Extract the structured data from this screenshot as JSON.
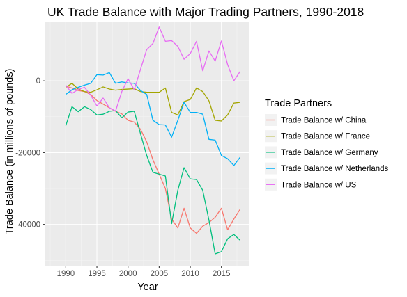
{
  "chart_data": {
    "type": "line",
    "title": "UK Trade Balance with Major Trading Partners, 1990-2018",
    "xlabel": "Year",
    "ylabel": "Trade Balance (in millions of pounds)",
    "xlim": [
      1986.6,
      2019.4
    ],
    "ylim": [
      -51500,
      16500
    ],
    "x_ticks": [
      1990,
      1995,
      2000,
      2005,
      2010,
      2015
    ],
    "y_ticks": [
      -40000,
      -20000,
      0
    ],
    "y_tick_labels": [
      "-40000",
      "-20000",
      "0"
    ],
    "grid": true,
    "legend": {
      "title": "Trade Partners",
      "placement": "right"
    },
    "x": [
      1990,
      1991,
      1992,
      1993,
      1994,
      1995,
      1996,
      1997,
      1998,
      1999,
      2000,
      2001,
      2002,
      2003,
      2004,
      2005,
      2006,
      2007,
      2008,
      2009,
      2010,
      2011,
      2012,
      2013,
      2014,
      2015,
      2016,
      2017,
      2018
    ],
    "series": [
      {
        "name": "Trade Balance w/ China",
        "color": "#F8766D",
        "values": [
          -1500,
          -2000,
          -2700,
          -3000,
          -3800,
          -5500,
          -6500,
          -7500,
          -8500,
          -9200,
          -11000,
          -11500,
          -13500,
          -17000,
          -22000,
          -26000,
          -30000,
          -38500,
          -41000,
          -35500,
          -41000,
          -42500,
          -40500,
          -39500,
          -38000,
          -35500,
          -41500,
          -38500,
          -35800
        ]
      },
      {
        "name": "Trade Balance w/ France",
        "color": "#A3A500",
        "values": [
          -1800,
          -700,
          -2300,
          -3000,
          -3200,
          -2500,
          -1700,
          -2300,
          -2600,
          -2400,
          -2300,
          -2200,
          -3000,
          -3200,
          -3200,
          -3200,
          -2000,
          -8800,
          -9500,
          -5800,
          -5200,
          -2000,
          -3000,
          -5600,
          -11000,
          -11200,
          -9500,
          -6200,
          -6000
        ]
      },
      {
        "name": "Trade Balance w/ Germany",
        "color": "#00BF7D",
        "values": [
          -12500,
          -7200,
          -8600,
          -7200,
          -8000,
          -9500,
          -9300,
          -8500,
          -8300,
          -10300,
          -8700,
          -8500,
          -14700,
          -20800,
          -25500,
          -26000,
          -26500,
          -39800,
          -30500,
          -24200,
          -27300,
          -27500,
          -30500,
          -38800,
          -48200,
          -47600,
          -44000,
          -42800,
          -44400
        ]
      },
      {
        "name": "Trade Balance w/ Netherlands",
        "color": "#00B0F6",
        "values": [
          -3800,
          -2500,
          -1800,
          -1200,
          -700,
          1700,
          1600,
          2300,
          -700,
          -300,
          -600,
          -700,
          -2700,
          -3800,
          -11000,
          -12200,
          -12300,
          -15700,
          -11000,
          -6000,
          -8800,
          -8800,
          -9300,
          -16300,
          -16500,
          -20800,
          -21700,
          -23600,
          -21300
        ]
      },
      {
        "name": "Trade Balance w/ US",
        "color": "#E76BF3",
        "values": [
          -1200,
          -3500,
          -2400,
          -1800,
          -4000,
          -7000,
          -4800,
          -7500,
          -8400,
          -3000,
          600,
          -2500,
          3200,
          8700,
          10400,
          15000,
          11000,
          11200,
          9600,
          6000,
          7600,
          11000,
          2800,
          8300,
          5500,
          11100,
          4500,
          0,
          2600
        ]
      }
    ]
  }
}
